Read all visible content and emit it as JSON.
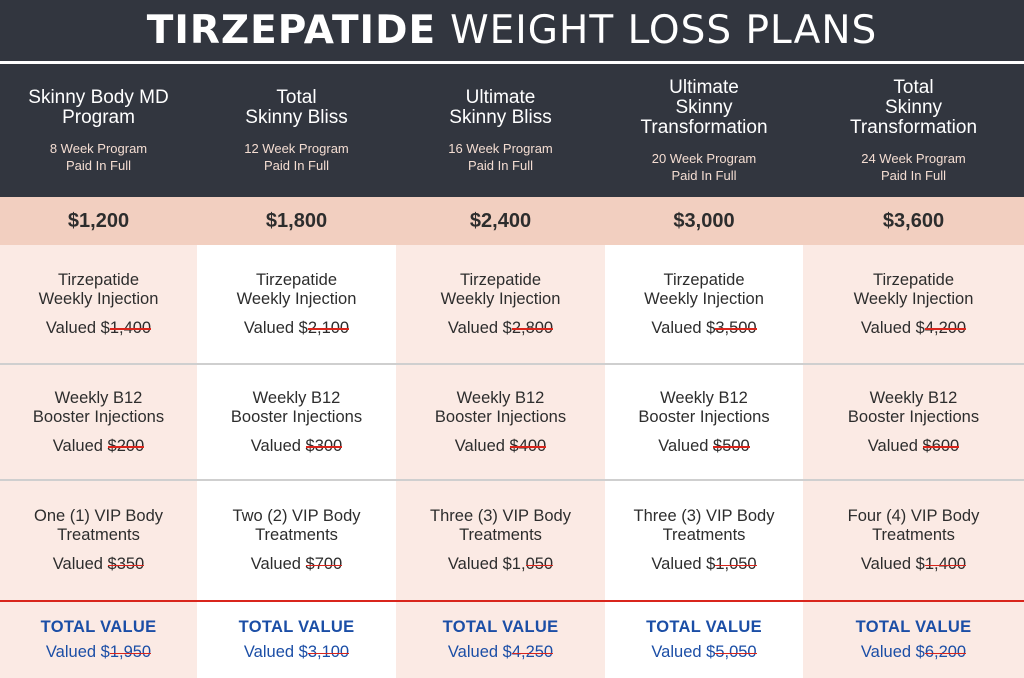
{
  "title": {
    "bold": "TIRZEPATIDE",
    "rest": "WEIGHT LOSS PLANS"
  },
  "colors": {
    "header_bg": "#32363f",
    "price_bg": "#f2cfc0",
    "body_pink": "#fbeae4",
    "accent_blue": "#1b4ea6",
    "strike_red": "#d9251c"
  },
  "plans": [
    {
      "name": "Skinny Body MD\nProgram",
      "weeks": "8 Week Program",
      "payment": "Paid In Full",
      "price": "$1,200",
      "tirzepatide": {
        "label": "Tirzepatide\nWeekly Injection",
        "valued_prefix": "Valued $",
        "valued_amount": "1,400"
      },
      "b12": {
        "label": "Weekly B12\nBooster Injections",
        "valued_prefix": "Valued ",
        "valued_amount": "$200"
      },
      "vip": {
        "label": "One (1) VIP Body\nTreatments",
        "valued_prefix": "Valued ",
        "valued_amount": "$350"
      },
      "total": {
        "label": "TOTAL VALUE",
        "valued_prefix": "Valued $",
        "valued_amount": "1,950"
      }
    },
    {
      "name": "Total\nSkinny Bliss",
      "weeks": "12 Week Program",
      "payment": "Paid In Full",
      "price": "$1,800",
      "tirzepatide": {
        "label": "Tirzepatide\nWeekly Injection",
        "valued_prefix": "Valued $",
        "valued_amount": "2,100"
      },
      "b12": {
        "label": "Weekly B12\nBooster Injections",
        "valued_prefix": "Valued ",
        "valued_amount": "$300"
      },
      "vip": {
        "label": "Two (2) VIP Body\nTreatments",
        "valued_prefix": "Valued ",
        "valued_amount": "$700"
      },
      "total": {
        "label": "TOTAL VALUE",
        "valued_prefix": "Valued $",
        "valued_amount": "3,100"
      }
    },
    {
      "name": "Ultimate\nSkinny Bliss",
      "weeks": "16 Week Program",
      "payment": "Paid In Full",
      "price": "$2,400",
      "tirzepatide": {
        "label": "Tirzepatide\nWeekly Injection",
        "valued_prefix": "Valued $",
        "valued_amount": "2,800"
      },
      "b12": {
        "label": "Weekly B12\nBooster Injections",
        "valued_prefix": "Valued ",
        "valued_amount": "$400"
      },
      "vip": {
        "label": "Three (3) VIP Body\nTreatments",
        "valued_prefix": "Valued $1,",
        "valued_amount": "050"
      },
      "total": {
        "label": "TOTAL VALUE",
        "valued_prefix": "Valued $",
        "valued_amount": "4,250"
      }
    },
    {
      "name": "Ultimate\nSkinny\nTransformation",
      "weeks": "20 Week Program",
      "payment": "Paid In Full",
      "price": "$3,000",
      "tirzepatide": {
        "label": "Tirzepatide\nWeekly Injection",
        "valued_prefix": "Valued $",
        "valued_amount": "3,500"
      },
      "b12": {
        "label": "Weekly B12\nBooster Injections",
        "valued_prefix": "Valued ",
        "valued_amount": "$500"
      },
      "vip": {
        "label": "Three (3) VIP Body\nTreatments",
        "valued_prefix": "Valued $",
        "valued_amount": "1,050"
      },
      "total": {
        "label": "TOTAL VALUE",
        "valued_prefix": "Valued $",
        "valued_amount": "5,050"
      }
    },
    {
      "name": "Total\nSkinny\nTransformation",
      "weeks": "24 Week Program",
      "payment": "Paid In Full",
      "price": "$3,600",
      "tirzepatide": {
        "label": "Tirzepatide\nWeekly Injection",
        "valued_prefix": "Valued $",
        "valued_amount": "4,200"
      },
      "b12": {
        "label": "Weekly B12\nBooster Injections",
        "valued_prefix": "Valued ",
        "valued_amount": "$600"
      },
      "vip": {
        "label": "Four (4) VIP Body\nTreatments",
        "valued_prefix": "Valued $",
        "valued_amount": "1,400"
      },
      "total": {
        "label": "TOTAL VALUE",
        "valued_prefix": "Valued $",
        "valued_amount": "6,200"
      }
    }
  ]
}
